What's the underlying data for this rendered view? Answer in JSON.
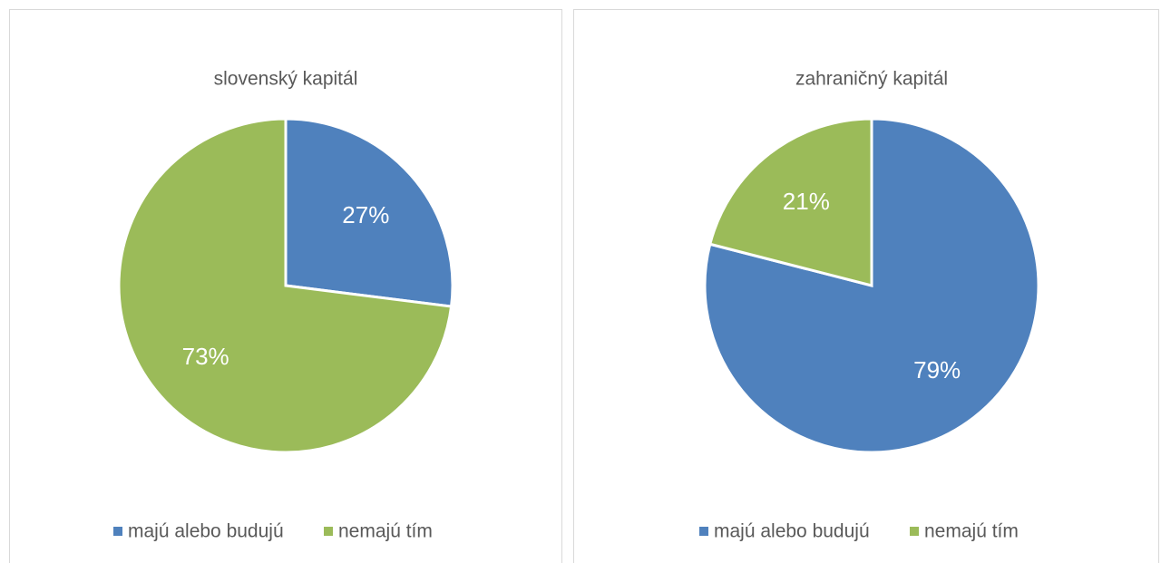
{
  "chart_data": [
    {
      "type": "pie",
      "title": "slovenský kapitál",
      "categories": [
        "majú alebo budujú",
        "nemajú tím"
      ],
      "values": [
        27,
        73
      ],
      "value_labels": [
        "27%",
        "73%"
      ],
      "colors": [
        "#4f81bd",
        "#9bbb59"
      ],
      "legend": "bottom"
    },
    {
      "type": "pie",
      "title": "zahraničný kapitál",
      "categories": [
        "majú alebo budujú",
        "nemajú tím"
      ],
      "values": [
        79,
        21
      ],
      "value_labels": [
        "79%",
        "21%"
      ],
      "colors": [
        "#4f81bd",
        "#9bbb59"
      ],
      "legend": "bottom"
    }
  ]
}
